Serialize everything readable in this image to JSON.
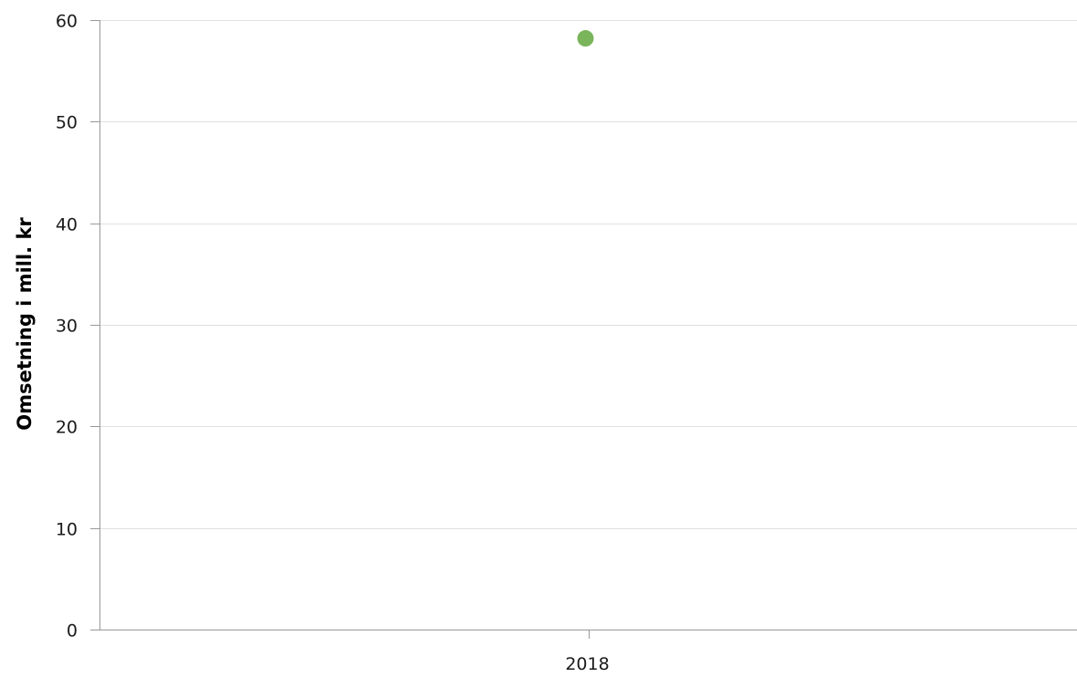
{
  "chart_data": {
    "type": "scatter",
    "title": "",
    "xlabel": "",
    "ylabel": "Omsetning i mill. kr",
    "categories": [
      "2018"
    ],
    "series": [
      {
        "values": [
          58.2
        ],
        "color": "#7ab55c"
      }
    ],
    "ylim": [
      0,
      60
    ],
    "yticks": [
      0,
      10,
      20,
      30,
      40,
      50,
      60
    ],
    "grid": true,
    "legend": "none"
  },
  "colors": {
    "grid": "#e0e0e0",
    "axis": "#999999",
    "point": "#7ab55c"
  }
}
